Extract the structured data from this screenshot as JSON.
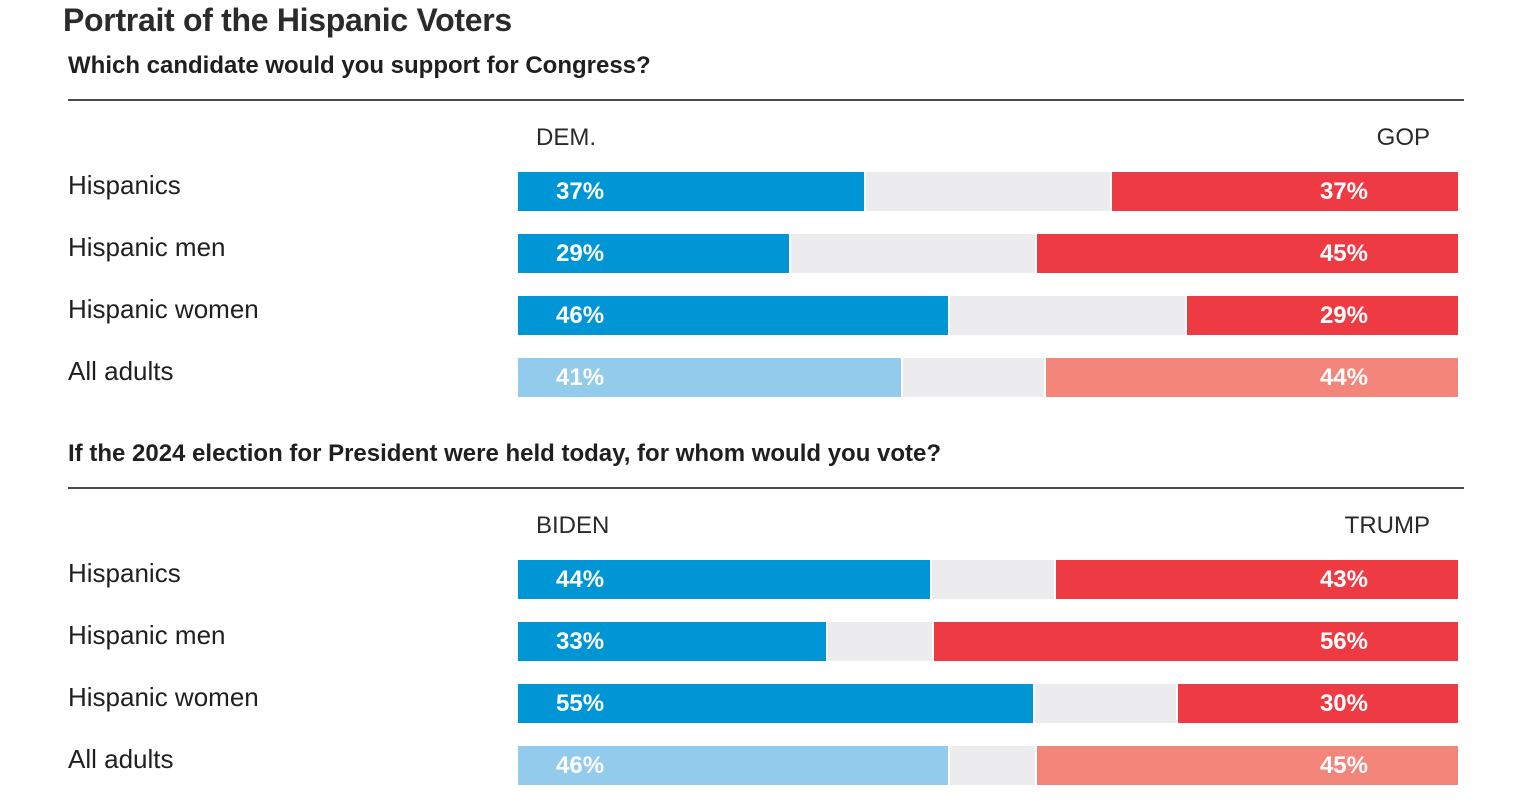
{
  "title": "Portrait of the Hispanic Voters",
  "colors": {
    "dem": "#0096d6",
    "gop": "#ee3a43",
    "dem_light": "#93cbec",
    "gop_light": "#f4857a",
    "neutral": "#ececee"
  },
  "chart_data": [
    {
      "type": "bar",
      "stacked": true,
      "orientation": "horizontal",
      "subtitle": "Which candidate would you support for Congress?",
      "left_label": "DEM.",
      "right_label": "GOP",
      "categories": [
        "Hispanics",
        "Hispanic men",
        "Hispanic women",
        "All adults"
      ],
      "series": [
        {
          "name": "DEM.",
          "values": [
            37,
            29,
            46,
            41
          ]
        },
        {
          "name": "GOP",
          "values": [
            37,
            45,
            29,
            44
          ]
        }
      ],
      "value_labels": {
        "left": [
          "37%",
          "29%",
          "46%",
          "41%"
        ],
        "right": [
          "37%",
          "45%",
          "29%",
          "44%"
        ]
      },
      "xlim": [
        0,
        100
      ],
      "highlight_rows": [
        0,
        1,
        2
      ],
      "muted_rows": [
        3
      ]
    },
    {
      "type": "bar",
      "stacked": true,
      "orientation": "horizontal",
      "subtitle": "If the 2024 election for President were held today, for whom would you vote?",
      "left_label": "BIDEN",
      "right_label": "TRUMP",
      "categories": [
        "Hispanics",
        "Hispanic men",
        "Hispanic women",
        "All adults"
      ],
      "series": [
        {
          "name": "BIDEN",
          "values": [
            44,
            33,
            55,
            46
          ]
        },
        {
          "name": "TRUMP",
          "values": [
            43,
            56,
            30,
            45
          ]
        }
      ],
      "value_labels": {
        "left": [
          "44%",
          "33%",
          "55%",
          "46%"
        ],
        "right": [
          "43%",
          "56%",
          "30%",
          "45%"
        ]
      },
      "xlim": [
        0,
        100
      ],
      "highlight_rows": [
        0,
        1,
        2
      ],
      "muted_rows": [
        3
      ]
    }
  ]
}
